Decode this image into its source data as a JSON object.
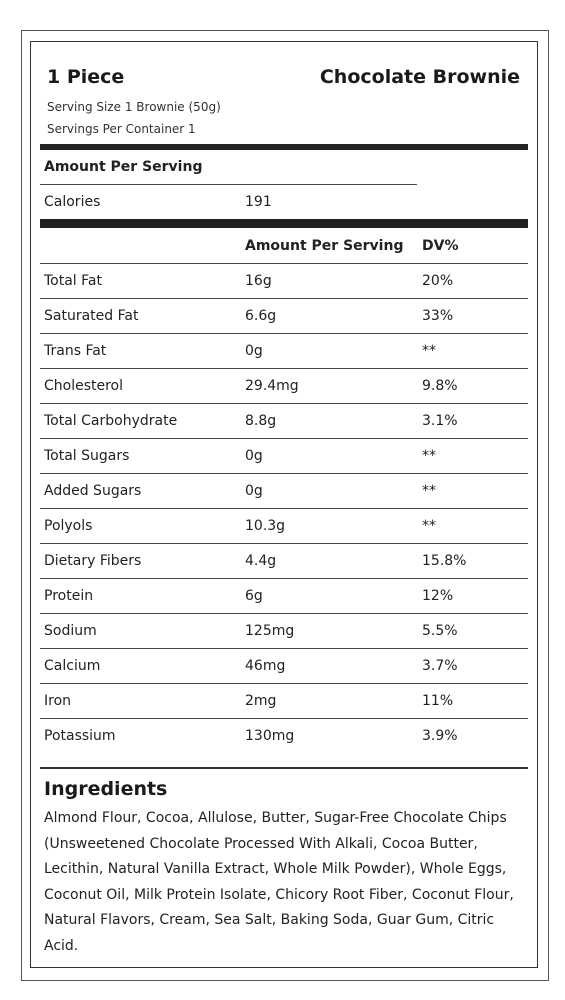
{
  "label": {
    "title_left": "1 Piece",
    "title_right": "Chocolate Brownie",
    "serving_size": "Serving Size 1 Brownie (50g)",
    "servings_per_container": "Servings Per Container 1",
    "amount_per_serving": "Amount Per Serving",
    "calories_label": "Calories",
    "calories_value": "191",
    "table_header": {
      "amount": "Amount Per Serving",
      "dv": "DV%"
    },
    "rows": [
      {
        "name": "Total Fat",
        "amount": "16g",
        "dv": "20%"
      },
      {
        "name": "Saturated Fat",
        "amount": "6.6g",
        "dv": "33%"
      },
      {
        "name": "Trans Fat",
        "amount": "0g",
        "dv": "**"
      },
      {
        "name": "Cholesterol",
        "amount": "29.4mg",
        "dv": "9.8%"
      },
      {
        "name": "Total Carbohydrate",
        "amount": "8.8g",
        "dv": "3.1%"
      },
      {
        "name": "Total Sugars",
        "amount": "0g",
        "dv": "**"
      },
      {
        "name": "Added Sugars",
        "amount": "0g",
        "dv": "**"
      },
      {
        "name": "Polyols",
        "amount": "10.3g",
        "dv": "**"
      },
      {
        "name": "Dietary Fibers",
        "amount": "4.4g",
        "dv": "15.8%"
      },
      {
        "name": "Protein",
        "amount": "6g",
        "dv": "12%"
      },
      {
        "name": "Sodium",
        "amount": "125mg",
        "dv": "5.5%"
      },
      {
        "name": "Calcium",
        "amount": "46mg",
        "dv": "3.7%"
      },
      {
        "name": "Iron",
        "amount": "2mg",
        "dv": "11%"
      },
      {
        "name": "Potassium",
        "amount": "130mg",
        "dv": "3.9%"
      }
    ],
    "ingredients_title": "Ingredients",
    "ingredients_text": "Almond Flour, Cocoa, Allulose, Butter, Sugar-Free Chocolate Chips (Unsweetened Chocolate Processed With Alkali, Cocoa Butter, Lecithin, Natural Vanilla Extract, Whole Milk Powder), Whole Eggs, Coconut Oil, Milk Protein Isolate, Chicory Root Fiber, Coconut Flour, Natural Flavors, Cream, Sea Salt, Baking Soda, Guar Gum, Citric Acid."
  }
}
